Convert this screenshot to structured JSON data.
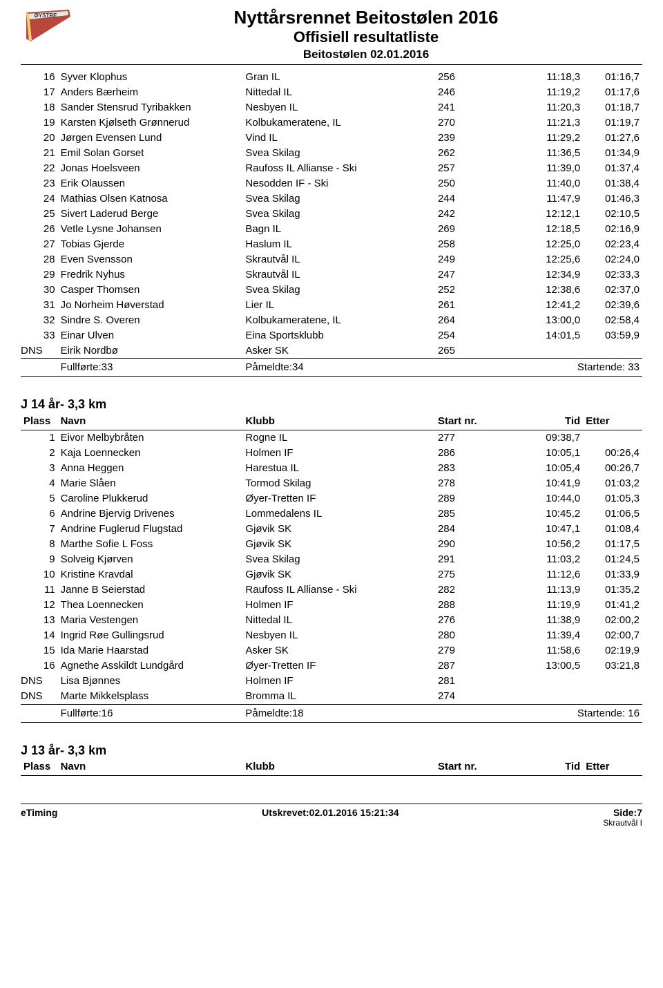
{
  "header": {
    "title": "Nyttårsrennet Beitostølen 2016",
    "subtitle": "Offisiell resultatliste",
    "location": "Beitostølen 02.01.2016",
    "logo_text": "ØYSTRE",
    "logo_colors": {
      "flag": "#b8473e",
      "band": "#f2d372",
      "textband": "#e8e8e0"
    }
  },
  "columns": {
    "plass": "Plass",
    "navn": "Navn",
    "klubb": "Klubb",
    "startnr": "Start nr.",
    "tid": "Tid",
    "etter": "Etter"
  },
  "block1": {
    "rows": [
      {
        "p": "16",
        "navn": "Syver Klophus",
        "klubb": "Gran IL",
        "nr": "256",
        "tid": "11:18,3",
        "etter": "01:16,7"
      },
      {
        "p": "17",
        "navn": "Anders Bærheim",
        "klubb": "Nittedal IL",
        "nr": "246",
        "tid": "11:19,2",
        "etter": "01:17,6"
      },
      {
        "p": "18",
        "navn": "Sander Stensrud Tyribakken",
        "klubb": "Nesbyen IL",
        "nr": "241",
        "tid": "11:20,3",
        "etter": "01:18,7"
      },
      {
        "p": "19",
        "navn": "Karsten Kjølseth Grønnerud",
        "klubb": "Kolbukameratene, IL",
        "nr": "270",
        "tid": "11:21,3",
        "etter": "01:19,7"
      },
      {
        "p": "20",
        "navn": "Jørgen Evensen Lund",
        "klubb": "Vind IL",
        "nr": "239",
        "tid": "11:29,2",
        "etter": "01:27,6"
      },
      {
        "p": "21",
        "navn": "Emil Solan Gorset",
        "klubb": "Svea Skilag",
        "nr": "262",
        "tid": "11:36,5",
        "etter": "01:34,9"
      },
      {
        "p": "22",
        "navn": "Jonas Hoelsveen",
        "klubb": "Raufoss IL Allianse - Ski",
        "nr": "257",
        "tid": "11:39,0",
        "etter": "01:37,4"
      },
      {
        "p": "23",
        "navn": "Erik Olaussen",
        "klubb": "Nesodden IF - Ski",
        "nr": "250",
        "tid": "11:40,0",
        "etter": "01:38,4"
      },
      {
        "p": "24",
        "navn": "Mathias Olsen Katnosa",
        "klubb": "Svea Skilag",
        "nr": "244",
        "tid": "11:47,9",
        "etter": "01:46,3"
      },
      {
        "p": "25",
        "navn": "Sivert Laderud Berge",
        "klubb": "Svea Skilag",
        "nr": "242",
        "tid": "12:12,1",
        "etter": "02:10,5"
      },
      {
        "p": "26",
        "navn": "Vetle Lysne Johansen",
        "klubb": "Bagn IL",
        "nr": "269",
        "tid": "12:18,5",
        "etter": "02:16,9"
      },
      {
        "p": "27",
        "navn": "Tobias Gjerde",
        "klubb": "Haslum IL",
        "nr": "258",
        "tid": "12:25,0",
        "etter": "02:23,4"
      },
      {
        "p": "28",
        "navn": "Even Svensson",
        "klubb": "Skrautvål IL",
        "nr": "249",
        "tid": "12:25,6",
        "etter": "02:24,0"
      },
      {
        "p": "29",
        "navn": "Fredrik Nyhus",
        "klubb": "Skrautvål IL",
        "nr": "247",
        "tid": "12:34,9",
        "etter": "02:33,3"
      },
      {
        "p": "30",
        "navn": "Casper Thomsen",
        "klubb": "Svea Skilag",
        "nr": "252",
        "tid": "12:38,6",
        "etter": "02:37,0"
      },
      {
        "p": "31",
        "navn": "Jo Norheim Høverstad",
        "klubb": "Lier IL",
        "nr": "261",
        "tid": "12:41,2",
        "etter": "02:39,6"
      },
      {
        "p": "32",
        "navn": "Sindre S. Overen",
        "klubb": "Kolbukameratene, IL",
        "nr": "264",
        "tid": "13:00,0",
        "etter": "02:58,4"
      },
      {
        "p": "33",
        "navn": "Einar Ulven",
        "klubb": "Eina Sportsklubb",
        "nr": "254",
        "tid": "14:01,5",
        "etter": "03:59,9"
      },
      {
        "p": "DNS",
        "navn": "Eirik Nordbø",
        "klubb": "Asker SK",
        "nr": "265",
        "tid": "",
        "etter": ""
      }
    ],
    "summary": {
      "fullforte": "Fullførte:33",
      "pameldte": "Påmeldte:34",
      "startende": "Startende: 33"
    }
  },
  "block2": {
    "title": "J 14 år- 3,3 km",
    "rows": [
      {
        "p": "1",
        "navn": "Eivor Melbybråten",
        "klubb": "Rogne IL",
        "nr": "277",
        "tid": "09:38,7",
        "etter": ""
      },
      {
        "p": "2",
        "navn": "Kaja Loennecken",
        "klubb": "Holmen IF",
        "nr": "286",
        "tid": "10:05,1",
        "etter": "00:26,4"
      },
      {
        "p": "3",
        "navn": "Anna Heggen",
        "klubb": "Harestua IL",
        "nr": "283",
        "tid": "10:05,4",
        "etter": "00:26,7"
      },
      {
        "p": "4",
        "navn": "Marie Slåen",
        "klubb": "Tormod Skilag",
        "nr": "278",
        "tid": "10:41,9",
        "etter": "01:03,2"
      },
      {
        "p": "5",
        "navn": "Caroline Plukkerud",
        "klubb": "Øyer-Tretten IF",
        "nr": "289",
        "tid": "10:44,0",
        "etter": "01:05,3"
      },
      {
        "p": "6",
        "navn": "Andrine Bjervig Drivenes",
        "klubb": "Lommedalens IL",
        "nr": "285",
        "tid": "10:45,2",
        "etter": "01:06,5"
      },
      {
        "p": "7",
        "navn": "Andrine Fuglerud Flugstad",
        "klubb": "Gjøvik SK",
        "nr": "284",
        "tid": "10:47,1",
        "etter": "01:08,4"
      },
      {
        "p": "8",
        "navn": "Marthe Sofie L Foss",
        "klubb": "Gjøvik SK",
        "nr": "290",
        "tid": "10:56,2",
        "etter": "01:17,5"
      },
      {
        "p": "9",
        "navn": "Solveig Kjørven",
        "klubb": "Svea Skilag",
        "nr": "291",
        "tid": "11:03,2",
        "etter": "01:24,5"
      },
      {
        "p": "10",
        "navn": "Kristine Kravdal",
        "klubb": "Gjøvik SK",
        "nr": "275",
        "tid": "11:12,6",
        "etter": "01:33,9"
      },
      {
        "p": "11",
        "navn": "Janne B Seierstad",
        "klubb": "Raufoss IL Allianse - Ski",
        "nr": "282",
        "tid": "11:13,9",
        "etter": "01:35,2"
      },
      {
        "p": "12",
        "navn": "Thea Loennecken",
        "klubb": "Holmen IF",
        "nr": "288",
        "tid": "11:19,9",
        "etter": "01:41,2"
      },
      {
        "p": "13",
        "navn": "Maria Vestengen",
        "klubb": "Nittedal IL",
        "nr": "276",
        "tid": "11:38,9",
        "etter": "02:00,2"
      },
      {
        "p": "14",
        "navn": "Ingrid Røe Gullingsrud",
        "klubb": "Nesbyen IL",
        "nr": "280",
        "tid": "11:39,4",
        "etter": "02:00,7"
      },
      {
        "p": "15",
        "navn": "Ida Marie Haarstad",
        "klubb": "Asker SK",
        "nr": "279",
        "tid": "11:58,6",
        "etter": "02:19,9"
      },
      {
        "p": "16",
        "navn": "Agnethe Asskildt Lundgård",
        "klubb": "Øyer-Tretten IF",
        "nr": "287",
        "tid": "13:00,5",
        "etter": "03:21,8"
      },
      {
        "p": "DNS",
        "navn": "Lisa Bjønnes",
        "klubb": "Holmen IF",
        "nr": "281",
        "tid": "",
        "etter": ""
      },
      {
        "p": "DNS",
        "navn": "Marte Mikkelsplass",
        "klubb": "Bromma IL",
        "nr": "274",
        "tid": "",
        "etter": ""
      }
    ],
    "summary": {
      "fullforte": "Fullførte:16",
      "pameldte": "Påmeldte:18",
      "startende": "Startende: 16"
    }
  },
  "block3": {
    "title": "J 13 år- 3,3 km"
  },
  "footer": {
    "left": "eTiming",
    "center": "Utskrevet:02.01.2016 15:21:34",
    "right": "Side:7",
    "rightsub": "Skrautvål I"
  }
}
